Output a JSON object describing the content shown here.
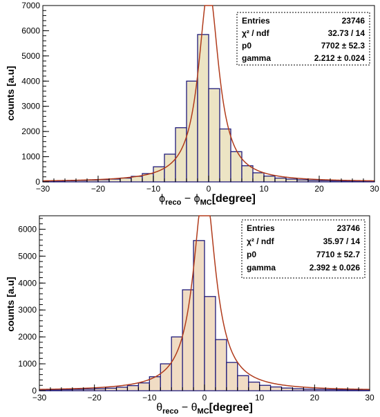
{
  "chart_data": [
    {
      "type": "bar",
      "ylabel": "counts [a.u]",
      "xlabel": {
        "main": "ϕ",
        "sub1": "reco",
        "mid": " − ϕ",
        "sub2": "MC",
        "unit": "[degree]"
      },
      "xlim": [
        -30,
        30
      ],
      "ylim": [
        0,
        7000
      ],
      "xticks": [
        "−30",
        "−20",
        "−10",
        "0",
        "10",
        "20",
        "30"
      ],
      "yticks": [
        "0",
        "1000",
        "2000",
        "3000",
        "4000",
        "5000",
        "6000",
        "7000"
      ],
      "bin_width": 2,
      "bin_edges_start": -30,
      "values": [
        30,
        35,
        45,
        55,
        70,
        85,
        110,
        150,
        220,
        330,
        600,
        1100,
        2150,
        4000,
        5850,
        3700,
        2100,
        1200,
        640,
        360,
        230,
        150,
        110,
        80,
        60,
        50,
        40,
        35,
        30,
        25
      ],
      "fit": {
        "p0": 7702,
        "gamma": 2.212,
        "mean": 0
      },
      "stats": [
        {
          "label": "Entries",
          "value": "23746"
        },
        {
          "label": "χ² / ndf",
          "value": "32.73 / 14"
        },
        {
          "label": "p0",
          "value": "7702 ± 52.3"
        },
        {
          "label": "gamma",
          "value": "2.212 ± 0.024"
        }
      ],
      "colors": {
        "fill": "#ece4c4",
        "line": "#1f1a7a",
        "fit": "#b03a1a"
      }
    },
    {
      "type": "bar",
      "ylabel": "counts [a.u]",
      "xlabel": {
        "main": "θ",
        "sub1": "reco",
        "mid": " − θ",
        "sub2": "MC",
        "unit": "[degree]"
      },
      "xlim": [
        -30,
        30
      ],
      "ylim": [
        0,
        6500
      ],
      "xticks": [
        "−30",
        "−20",
        "−10",
        "0",
        "10",
        "20",
        "30"
      ],
      "yticks": [
        "0",
        "1000",
        "2000",
        "3000",
        "4000",
        "5000",
        "6000"
      ],
      "bin_width": 2,
      "bin_edges_start": -30,
      "values": [
        25,
        30,
        40,
        50,
        60,
        75,
        95,
        130,
        190,
        290,
        520,
        1000,
        2000,
        3750,
        5580,
        3500,
        1900,
        1050,
        560,
        320,
        200,
        140,
        100,
        75,
        60,
        50,
        40,
        35,
        30,
        25
      ],
      "fit": {
        "p0": 7710,
        "gamma": 2.392,
        "mean": 0
      },
      "stats": [
        {
          "label": "Entries",
          "value": "23746"
        },
        {
          "label": "χ² / ndf",
          "value": "35.97 / 14"
        },
        {
          "label": "p0",
          "value": "7710 ± 52.7"
        },
        {
          "label": "gamma",
          "value": "2.392 ± 0.026"
        }
      ],
      "colors": {
        "fill": "#f0dcc4",
        "line": "#1f1a7a",
        "fit": "#b03a1a"
      }
    }
  ]
}
